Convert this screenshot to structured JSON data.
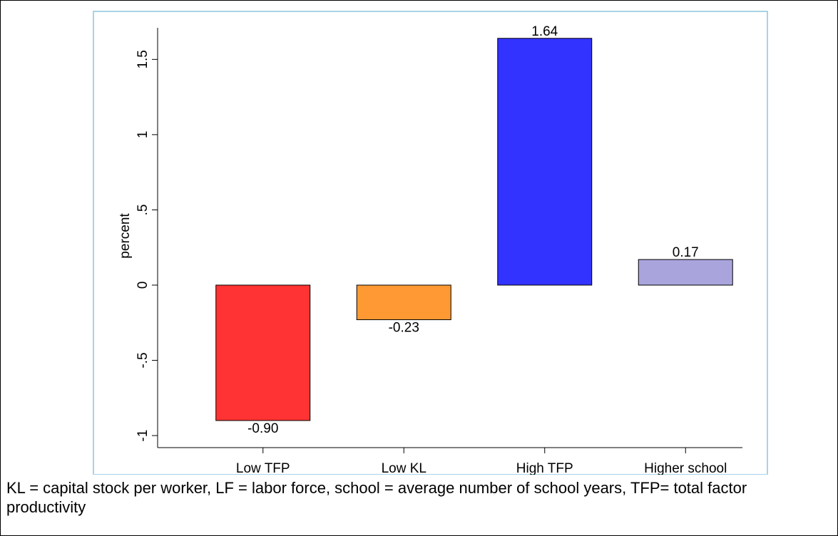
{
  "chart_data": {
    "type": "bar",
    "ylabel": "percent",
    "categories": [
      "Low TFP",
      "Low KL",
      "High TFP",
      "Higher school"
    ],
    "values": [
      -0.9,
      -0.23,
      1.64,
      0.17
    ],
    "value_labels": [
      "-0.90",
      "-0.23",
      "1.64",
      "0.17"
    ],
    "colors": [
      "#ff3333",
      "#ff9933",
      "#3333ff",
      "#a9a5dc"
    ],
    "ylim": [
      -1.08,
      1.71
    ],
    "yticks": [
      -1,
      {
        "value": -0.5,
        "label": "-.5"
      },
      0,
      {
        "value": 0.5,
        "label": ".5"
      },
      1,
      1.5
    ],
    "grid": false
  },
  "note": "KL = capital stock per worker, LF = labor force, school = average number of school years, TFP= total factor productivity"
}
